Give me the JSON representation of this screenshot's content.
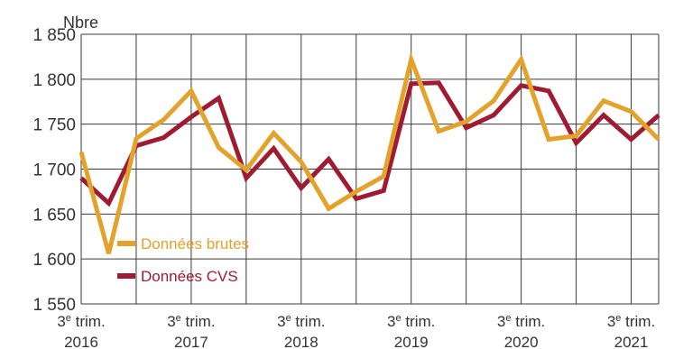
{
  "chart_data": {
    "type": "line",
    "title": "",
    "ylabel": "Nbre",
    "xlabel": "",
    "ylim": [
      1550,
      1850
    ],
    "ytick_values": [
      1550,
      1600,
      1650,
      1700,
      1750,
      1800,
      1850
    ],
    "ytick_labels": [
      "1 550",
      "1 600",
      "1 650",
      "1 700",
      "1 750",
      "1 800",
      "1 850"
    ],
    "xtick_labels": [
      {
        "index": 0,
        "line1": "3e trim.",
        "line2": "2016"
      },
      {
        "index": 4,
        "line1": "3e trim.",
        "line2": "2017"
      },
      {
        "index": 8,
        "line1": "3e trim.",
        "line2": "2018"
      },
      {
        "index": 12,
        "line1": "3e trim.",
        "line2": "2019"
      },
      {
        "index": 16,
        "line1": "3e trim.",
        "line2": "2020"
      },
      {
        "index": 20,
        "line1": "3e trim.",
        "line2": "2021"
      }
    ],
    "categories": [
      "2016 T3",
      "2016 T4",
      "2017 T1",
      "2017 T2",
      "2017 T3",
      "2017 T4",
      "2018 T1",
      "2018 T2",
      "2018 T3",
      "2018 T4",
      "2019 T1",
      "2019 T2",
      "2019 T3",
      "2019 T4",
      "2020 T1",
      "2020 T2",
      "2020 T3",
      "2020 T4",
      "2021 T1",
      "2021 T2",
      "2021 T3",
      "2021 T4"
    ],
    "series": [
      {
        "name": "Données brutes",
        "color": "#e3a22b",
        "values": [
          1719,
          1606,
          1734,
          1755,
          1787,
          1724,
          1699,
          1740,
          1708,
          1656,
          1675,
          1692,
          1822,
          1742,
          1753,
          1776,
          1822,
          1733,
          1737,
          1776,
          1764,
          1733
        ]
      },
      {
        "name": "Données CVS",
        "color": "#9e1b32",
        "values": [
          1690,
          1662,
          1726,
          1735,
          1758,
          1779,
          1690,
          1723,
          1679,
          1711,
          1667,
          1676,
          1795,
          1796,
          1746,
          1760,
          1793,
          1787,
          1729,
          1760,
          1733,
          1760
        ]
      }
    ],
    "legend_position": "bottom-left",
    "grid": true
  }
}
